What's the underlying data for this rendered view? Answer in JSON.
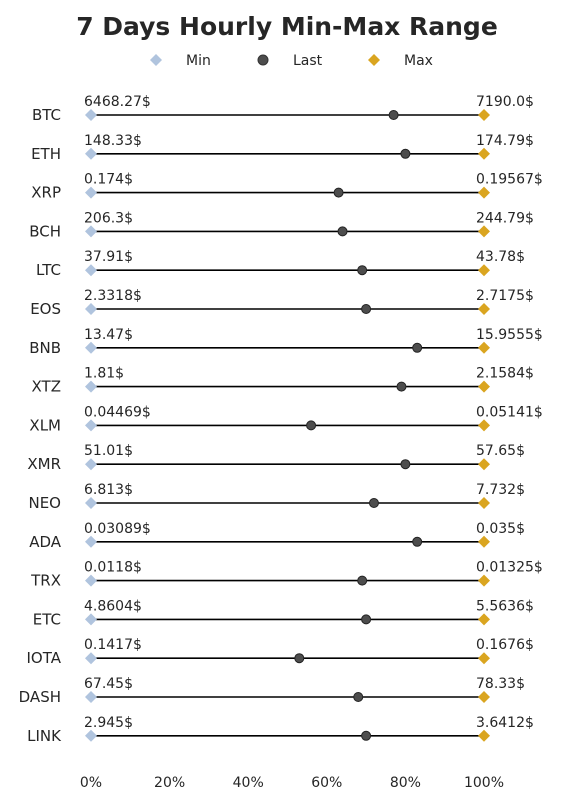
{
  "chart_data": {
    "type": "dot-range",
    "title": "7 Days Hourly Min-Max Range",
    "legend": [
      {
        "name": "Min",
        "color": "#b0c4de",
        "marker": "diamond"
      },
      {
        "name": "Last",
        "color": "#4d4d4d",
        "marker": "circle"
      },
      {
        "name": "Max",
        "color": "#daa520",
        "marker": "diamond"
      }
    ],
    "legend_position": "top-center",
    "x_ticks": [
      "0%",
      "20%",
      "40%",
      "60%",
      "80%",
      "100%"
    ],
    "xlim": [
      0,
      100
    ],
    "grid": false,
    "categories": [
      "BTC",
      "ETH",
      "XRP",
      "BCH",
      "LTC",
      "EOS",
      "BNB",
      "XTZ",
      "XLM",
      "XMR",
      "NEO",
      "ADA",
      "TRX",
      "ETC",
      "IOTA",
      "DASH",
      "LINK"
    ],
    "min_labels": [
      "6468.27$",
      "148.33$",
      "0.174$",
      "206.3$",
      "37.91$",
      "2.3318$",
      "13.47$",
      "1.81$",
      "0.04469$",
      "51.01$",
      "6.813$",
      "0.03089$",
      "0.0118$",
      "4.8604$",
      "0.1417$",
      "67.45$",
      "2.945$"
    ],
    "max_labels": [
      "7190.0$",
      "174.79$",
      "0.19567$",
      "244.79$",
      "43.78$",
      "2.7175$",
      "15.9555$",
      "2.1584$",
      "0.05141$",
      "57.65$",
      "7.732$",
      "0.035$",
      "0.01325$",
      "5.5636$",
      "0.1676$",
      "78.33$",
      "3.6412$"
    ],
    "min_values": [
      0,
      0,
      0,
      0,
      0,
      0,
      0,
      0,
      0,
      0,
      0,
      0,
      0,
      0,
      0,
      0,
      0
    ],
    "last_values": [
      77,
      80,
      63,
      64,
      69,
      70,
      83,
      79,
      56,
      80,
      72,
      83,
      69,
      70,
      53,
      68,
      70
    ],
    "max_values": [
      100,
      100,
      100,
      100,
      100,
      100,
      100,
      100,
      100,
      100,
      100,
      100,
      100,
      100,
      100,
      100,
      100
    ]
  }
}
